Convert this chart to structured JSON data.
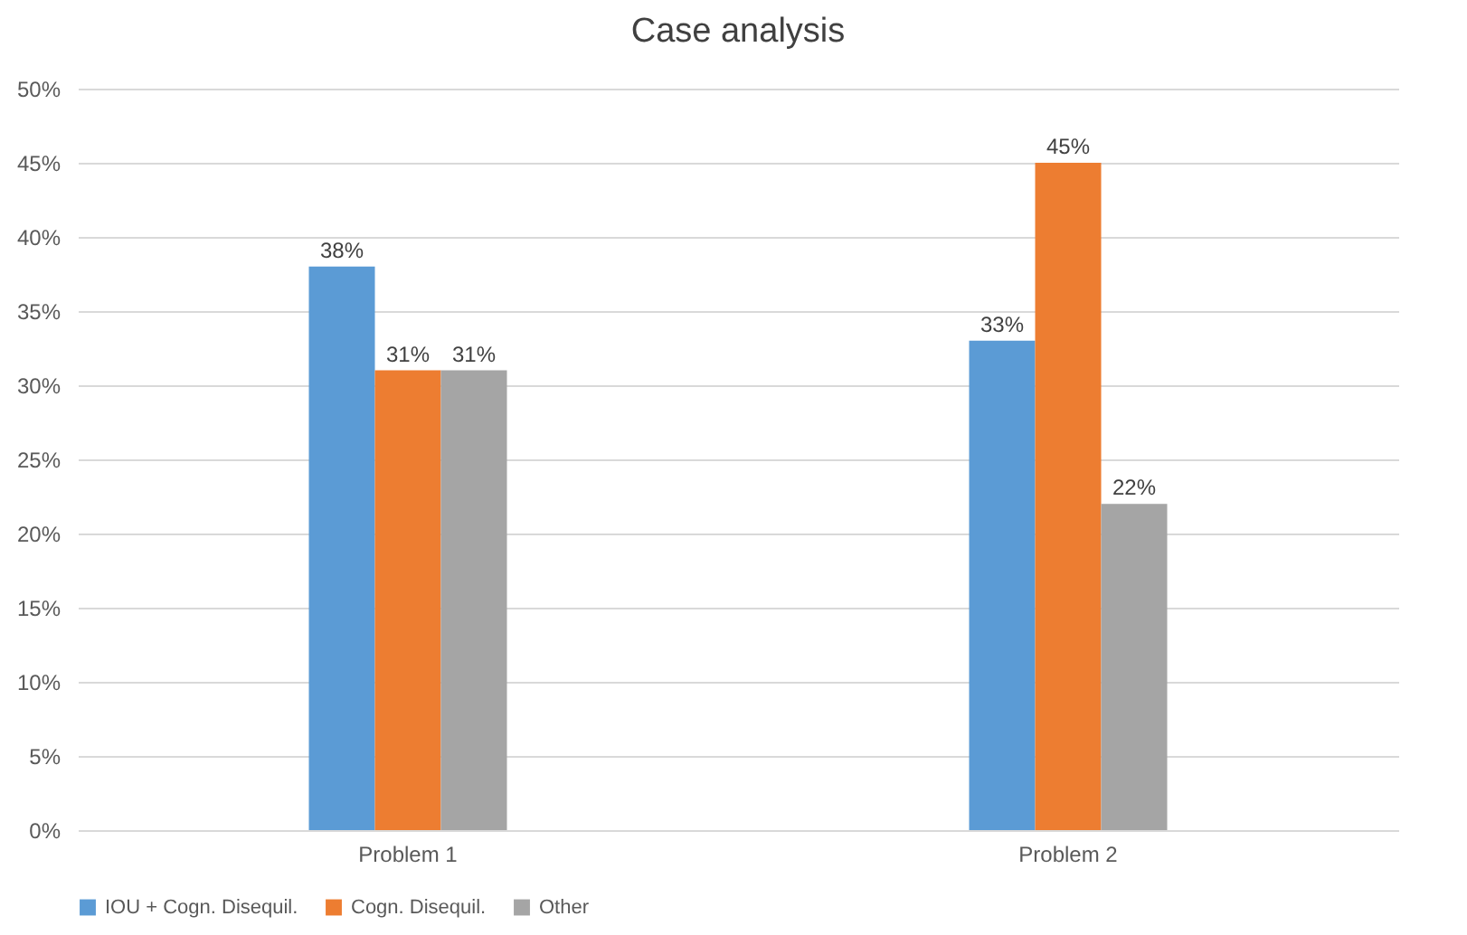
{
  "chart_data": {
    "type": "bar",
    "title": "Case analysis",
    "categories": [
      "Problem 1",
      "Problem 2"
    ],
    "series": [
      {
        "name": "IOU + Cogn. Disequil.",
        "color": "#5b9bd5",
        "values": [
          38,
          33
        ],
        "value_labels": [
          "38%",
          "33%"
        ]
      },
      {
        "name": "Cogn. Disequil.",
        "color": "#ed7d31",
        "values": [
          31,
          45
        ],
        "value_labels": [
          "31%",
          "45%"
        ]
      },
      {
        "name": "Other",
        "color": "#a5a5a5",
        "values": [
          31,
          22
        ],
        "value_labels": [
          "31%",
          "22%"
        ]
      }
    ],
    "ylim": [
      0,
      50
    ],
    "yticks": [
      {
        "value": 0,
        "label": "0%"
      },
      {
        "value": 5,
        "label": "5%"
      },
      {
        "value": 10,
        "label": "10%"
      },
      {
        "value": 15,
        "label": "15%"
      },
      {
        "value": 20,
        "label": "20%"
      },
      {
        "value": 25,
        "label": "25%"
      },
      {
        "value": 30,
        "label": "30%"
      },
      {
        "value": 35,
        "label": "35%"
      },
      {
        "value": 40,
        "label": "40%"
      },
      {
        "value": 45,
        "label": "45%"
      },
      {
        "value": 50,
        "label": "50%"
      }
    ],
    "grid": "y",
    "legend": "bottom"
  }
}
